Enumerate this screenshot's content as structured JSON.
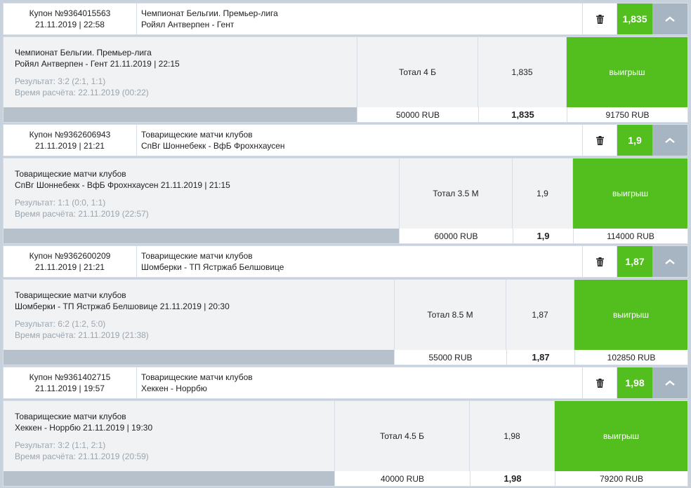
{
  "coupons": [
    {
      "coupon_label": "Купон №9364015563",
      "coupon_datetime": "21.11.2019 | 22:58",
      "league": "Чемпионат Бельгии. Премьер-лига",
      "match": "Ройял Антверпен - Гент",
      "odds": "1,835",
      "bet_league": "Чемпионат Бельгии. Премьер-лига",
      "bet_match": "Ройял Антверпен - Гент 21.11.2019 | 22:15",
      "result": "Результат: 3:2 (2:1, 1:1)",
      "settled": "Время расчёта: 22.11.2019 (00:22)",
      "market": "Тотал 4 Б",
      "coef": "1,835",
      "outcome": "выигрыш",
      "stake": "50000 RUB",
      "total_coef": "1,835",
      "payout": "91750 RUB"
    },
    {
      "coupon_label": "Купон №9362606943",
      "coupon_datetime": "21.11.2019 | 21:21",
      "league": "Товарищеские матчи клубов",
      "match": "СпВг Шоннебекк - ВфБ Фрохнхаусен",
      "odds": "1,9",
      "bet_league": "Товарищеские матчи клубов",
      "bet_match": "СпВг Шоннебекк - ВфБ Фрохнхаусен 21.11.2019 | 21:15",
      "result": "Результат: 1:1 (0:0, 1:1)",
      "settled": "Время расчёта: 21.11.2019 (22:57)",
      "market": "Тотал 3.5 М",
      "coef": "1,9",
      "outcome": "выигрыш",
      "stake": "60000 RUB",
      "total_coef": "1,9",
      "payout": "114000 RUB"
    },
    {
      "coupon_label": "Купон №9362600209",
      "coupon_datetime": "21.11.2019 | 21:21",
      "league": "Товарищеские матчи клубов",
      "match": "Шомберки - ТП Ястржаб Белшовице",
      "odds": "1,87",
      "bet_league": "Товарищеские матчи клубов",
      "bet_match": "Шомберки - ТП Ястржаб Белшовице 21.11.2019 | 20:30",
      "result": "Результат: 6:2 (1:2, 5:0)",
      "settled": "Время расчёта: 21.11.2019 (21:38)",
      "market": "Тотал 8.5 М",
      "coef": "1,87",
      "outcome": "выигрыш",
      "stake": "55000 RUB",
      "total_coef": "1,87",
      "payout": "102850 RUB"
    },
    {
      "coupon_label": "Купон №9361402715",
      "coupon_datetime": "21.11.2019 | 19:57",
      "league": "Товарищеские матчи клубов",
      "match": "Хеккен - Норрбю",
      "odds": "1,98",
      "bet_league": "Товарищеские матчи клубов",
      "bet_match": "Хеккен - Норрбю 21.11.2019 | 19:30",
      "result": "Результат: 3:2 (1:1, 2:1)",
      "settled": "Время расчёта: 21.11.2019 (20:59)",
      "market": "Тотал 4.5 Б",
      "coef": "1,98",
      "outcome": "выигрыш",
      "stake": "40000 RUB",
      "total_coef": "1,98",
      "payout": "79200 RUB"
    }
  ],
  "colors": {
    "win": "#52bf1f",
    "collapse": "#a7b5c3",
    "footer_bar": "#b6c1cc"
  },
  "icons": {
    "delete": "trash-icon",
    "collapse": "chevron-up-icon"
  }
}
